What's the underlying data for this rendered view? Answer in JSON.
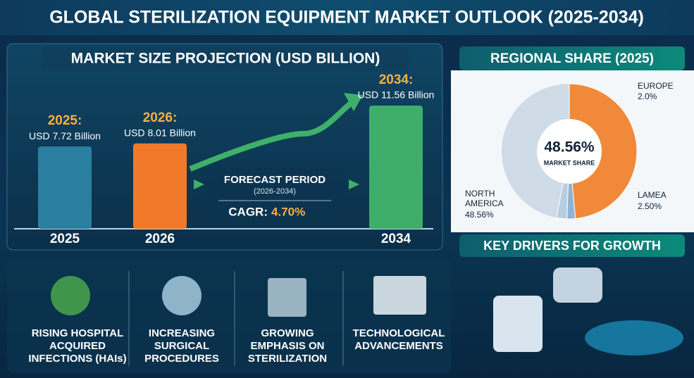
{
  "title": "GLOBAL STERILIZATION EQUIPMENT MARKET OUTLOOK (2025-2034)",
  "chart_data": [
    {
      "type": "bar",
      "title": "MARKET SIZE PROJECTION (USD BILLION)",
      "categories": [
        "2025",
        "2026",
        "2034"
      ],
      "headings": [
        "2025:",
        "2026:",
        "2034:"
      ],
      "values": [
        7.72,
        8.01,
        11.56
      ],
      "value_labels": [
        "USD 7.72 Billion",
        "USD 8.01 Billion",
        "USD 11.56 Billion"
      ],
      "colors": [
        "#2a7fa0",
        "#f07a2a",
        "#3fae6a"
      ],
      "forecast": {
        "title": "FORECAST PERIOD",
        "period": "(2026-2034)",
        "cagr_label": "CAGR:",
        "cagr_value": "4.70%"
      }
    },
    {
      "type": "pie",
      "title": "REGIONAL SHARE (2025)",
      "categories": [
        "NORTH AMERICA",
        "EUROPE",
        "LAMEA"
      ],
      "values": [
        48.56,
        2.0,
        2.5
      ],
      "value_labels": [
        "48.56%",
        "2.0%",
        "2.50%"
      ],
      "colors": [
        "#f08a3a",
        "#8fb3d3",
        "#b9cde0"
      ],
      "center_label": "MARKET SHARE"
    }
  ],
  "drivers": {
    "title": "KEY DRIVERS FOR GROWTH",
    "items": [
      "RISING HOSPITAL ACQUIRED INFECTIONS (HAIs)",
      "INCREASING SURGICAL PROCEDURES",
      "GROWING EMPHASIS ON STERILIZATION",
      "TECHNOLOGICAL ADVANCEMENTS"
    ]
  }
}
